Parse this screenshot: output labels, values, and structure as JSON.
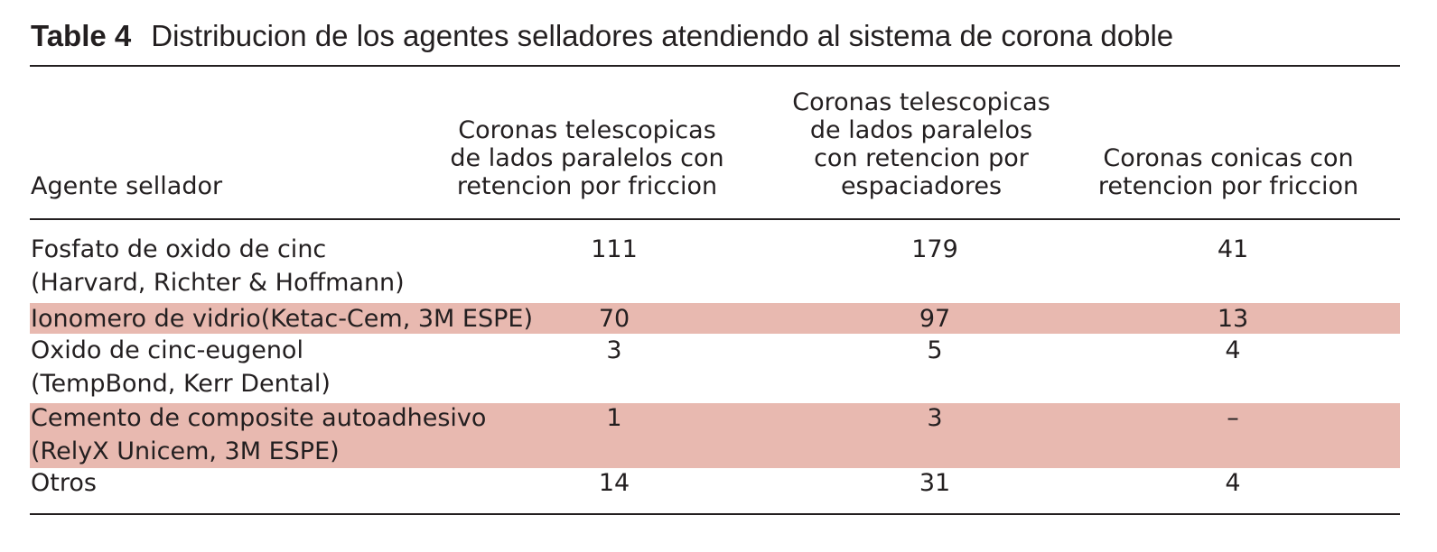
{
  "table": {
    "title_number": "Table 4",
    "title_text": "Distribucion de los agentes selladores atendiendo al sistema de corona doble",
    "headers": [
      "Agente sellador",
      "Coronas telescopicas\nde lados paralelos con\nretencion por friccion",
      "Coronas telescopicas\nde lados paralelos\ncon retencion por\nespaciadores",
      "Coronas conicas con\nretencion por friccion"
    ],
    "rows": [
      {
        "agent": "Fosfato de oxido de cinc\n(Harvard, Richter & Hoffmann)",
        "c1": "111",
        "c2": "179",
        "c3": "41",
        "highlight": false
      },
      {
        "agent": "Ionomero de vidrio(Ketac-Cem, 3M ESPE)",
        "c1": "70",
        "c2": "97",
        "c3": "13",
        "highlight": true
      },
      {
        "agent": "Oxido de cinc-eugenol\n(TempBond, Kerr Dental)",
        "c1": "3",
        "c2": "5",
        "c3": "4",
        "highlight": false
      },
      {
        "agent": "Cemento de composite autoadhesivo\n(RelyX Unicem, 3M ESPE)",
        "c1": "1",
        "c2": "3",
        "c3": "–",
        "highlight": true
      },
      {
        "agent": "Otros",
        "c1": "14",
        "c2": "31",
        "c3": "4",
        "highlight": false
      }
    ],
    "highlight_color": "#e8b9b0"
  }
}
